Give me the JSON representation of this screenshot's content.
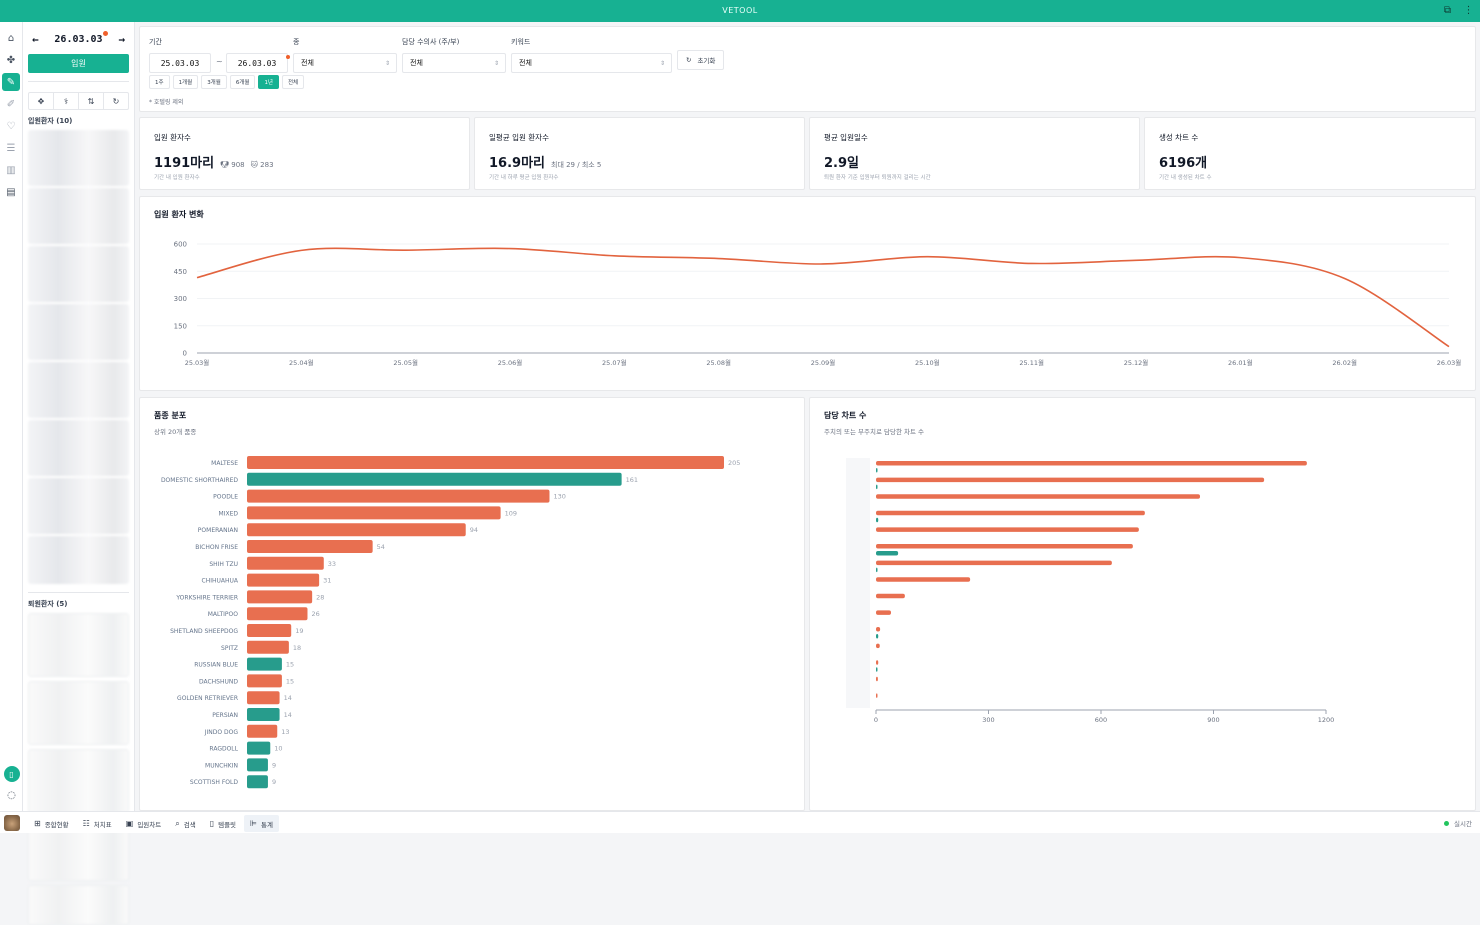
{
  "app": {
    "title": "VETOOL",
    "status": "실시간"
  },
  "rail": {
    "icons": [
      "home-icon",
      "paw-icon",
      "pencil-icon",
      "pen-icon",
      "heart-pulse-icon",
      "checklist-icon",
      "bar-chart-icon",
      "book-icon"
    ],
    "active_index": 2
  },
  "left_panel": {
    "date": "26.03.03",
    "admit_label": "입원",
    "tools": [
      "cross-icon",
      "stethoscope-icon",
      "sort-icon",
      "refresh-icon"
    ],
    "admitted_label": "입원환자 (10)",
    "discharged_label": "퇴원환자 (5)"
  },
  "filters": {
    "period_label": "기간",
    "start_date": "25.03.03",
    "end_date": "26.03.03",
    "tilde": "~",
    "species_label": "종",
    "species_value": "전체",
    "vet_label": "담당 수의사 (주/부)",
    "vet_value": "전체",
    "keyword_label": "키워드",
    "keyword_value": "전체",
    "reset_label": "초기화",
    "periods": [
      "1주",
      "1개월",
      "3개월",
      "6개월",
      "1년",
      "전체"
    ],
    "active_period": "1년",
    "note": "* 호텔링 제외"
  },
  "stats": [
    {
      "title": "입원 환자수",
      "value": "1191마리",
      "dog_count": "908",
      "cat_count": "283",
      "sub": "기간 내 입원 환자수"
    },
    {
      "title": "일평균 입원 환자수",
      "value": "16.9마리",
      "extra": "최대 29 / 최소 5",
      "sub": "기간 내 하루 평균 입원 환자수"
    },
    {
      "title": "평균 입원일수",
      "value": "2.9일",
      "sub": "퇴원 환자 기준 입원부터 퇴원까지 걸리는 시간"
    },
    {
      "title": "생성 차트 수",
      "value": "6196개",
      "sub": "기간 내 생성된 차트 수"
    }
  ],
  "colors": {
    "accent": "#17b192",
    "dog": "#e86f50",
    "cat": "#279c8c",
    "line": "#e2633e"
  },
  "chart_data": [
    {
      "type": "line",
      "title": "입원 환자 변화",
      "x": [
        "25.03월",
        "25.04월",
        "25.05월",
        "25.06월",
        "25.07월",
        "25.08월",
        "25.09월",
        "25.10월",
        "25.11월",
        "25.12월",
        "26.01월",
        "26.02월",
        "26.03월"
      ],
      "series": [
        {
          "name": "입원 환자",
          "values": [
            415,
            565,
            566,
            575,
            535,
            520,
            490,
            530,
            493,
            510,
            525,
            410,
            35
          ]
        }
      ],
      "yticks": [
        0,
        150,
        300,
        450,
        600
      ],
      "ylim": [
        0,
        600
      ],
      "grid": true
    },
    {
      "type": "bar",
      "title": "품종 분포",
      "subtitle": "상위 20개 품종",
      "orientation": "horizontal",
      "categories": [
        "MALTESE",
        "DOMESTIC SHORTHAIRED",
        "POODLE",
        "MIXED",
        "POMERANIAN",
        "BICHON FRISE",
        "SHIH TZU",
        "CHIHUAHUA",
        "YORKSHIRE TERRIER",
        "MALTIPOO",
        "SHETLAND SHEEPDOG",
        "SPITZ",
        "RUSSIAN BLUE",
        "DACHSHUND",
        "GOLDEN RETRIEVER",
        "PERSIAN",
        "JINDO DOG",
        "RAGDOLL",
        "MUNCHKIN",
        "SCOTTISH FOLD"
      ],
      "values": [
        205,
        161,
        130,
        109,
        94,
        54,
        33,
        31,
        28,
        26,
        19,
        18,
        15,
        15,
        14,
        14,
        13,
        10,
        9,
        9
      ],
      "species": [
        "dog",
        "cat",
        "dog",
        "dog",
        "dog",
        "dog",
        "dog",
        "dog",
        "dog",
        "dog",
        "dog",
        "dog",
        "cat",
        "dog",
        "dog",
        "cat",
        "dog",
        "cat",
        "cat",
        "cat"
      ]
    },
    {
      "type": "bar",
      "title": "담당 차트 수",
      "subtitle": "주치의 또는 부주치로 담당한 차트 수",
      "orientation": "horizontal",
      "categories": [
        "",
        "",
        "",
        "",
        "",
        "",
        "",
        "",
        "",
        "",
        "",
        "",
        "",
        "",
        ""
      ],
      "series": [
        {
          "name": "주치의",
          "values": [
            1149,
            1035,
            864,
            717,
            701,
            685,
            629,
            251,
            77,
            40,
            11,
            10,
            6,
            5,
            4
          ]
        },
        {
          "name": "부주치",
          "values": [
            4,
            2,
            0,
            6,
            0,
            59,
            1,
            0,
            0,
            0,
            6,
            0,
            1,
            0,
            0
          ]
        }
      ],
      "xticks": [
        0,
        300,
        600,
        900,
        1200
      ],
      "xlim": [
        0,
        1200
      ]
    }
  ],
  "bottom_tabs": [
    {
      "icon": "grid-icon",
      "label": "종합현황"
    },
    {
      "icon": "checklist-icon",
      "label": "처치표"
    },
    {
      "icon": "clipboard-icon",
      "label": "입원차트"
    },
    {
      "icon": "search-icon",
      "label": "검색"
    },
    {
      "icon": "bookmark-icon",
      "label": "템플릿"
    },
    {
      "icon": "bar-chart-icon",
      "label": "통계"
    }
  ],
  "active_bottom_tab": "통계"
}
